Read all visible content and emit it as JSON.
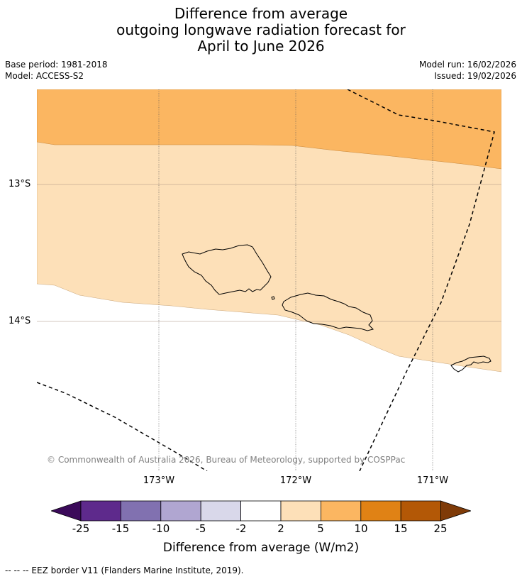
{
  "title": {
    "line1": "Difference from average",
    "line2": "outgoing longwave radiation forecast for",
    "line3": "April to June 2026"
  },
  "meta": {
    "base_period": "Base period: 1981-2018",
    "model": "Model: ACCESS-S2",
    "model_run": "Model run: 16/02/2026",
    "issued": "Issued: 19/02/2026"
  },
  "axes": {
    "lat_labels": [
      "13°S",
      "14°S"
    ],
    "lon_labels": [
      "173°W",
      "172°W",
      "171°W"
    ]
  },
  "copyright": "© Commonwealth of Australia 2026, Bureau of Meteorology, supported by COSPPac",
  "colorbar": {
    "ticks": [
      "-25",
      "-15",
      "-10",
      "-5",
      "-2",
      "2",
      "5",
      "10",
      "15",
      "25"
    ],
    "colors": [
      "#3b0a5a",
      "#5e2a8c",
      "#8171b0",
      "#b0a6d1",
      "#d9d8ea",
      "#ffffff",
      "#fde0b8",
      "#fbb661",
      "#e08215",
      "#b35806",
      "#7f3b08"
    ],
    "title": "Difference from average (W/m2)"
  },
  "legend": {
    "text": "--  --  -- EEZ border V11 (Flanders Marine Institute, 2019)."
  }
}
